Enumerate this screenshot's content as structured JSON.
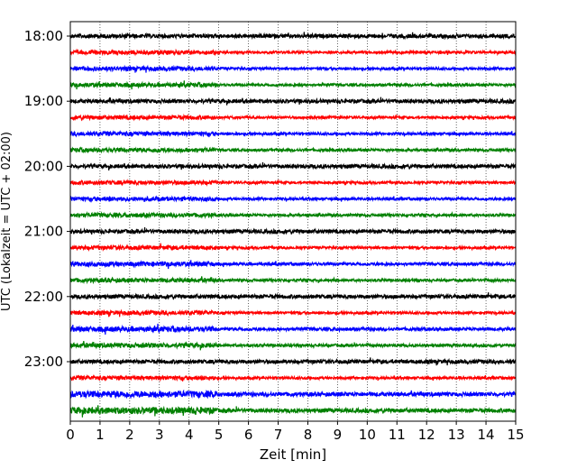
{
  "chart_data": {
    "type": "line",
    "xlabel": "Zeit  [min]",
    "ylabel": "UTC (Lokalzeit = UTC + 02:00)",
    "xlim": [
      0,
      15
    ],
    "x_ticks": [
      0,
      1,
      2,
      3,
      4,
      5,
      6,
      7,
      8,
      9,
      10,
      11,
      12,
      13,
      14,
      15
    ],
    "y_ticks": [
      "18:00",
      "19:00",
      "20:00",
      "21:00",
      "22:00",
      "23:00"
    ],
    "grid": "vertical dotted",
    "colors": [
      "#000000",
      "#ff0000",
      "#0000ff",
      "#008000"
    ],
    "traces": [
      {
        "start": "18:00",
        "color": "#000000",
        "amplitude": 0.9
      },
      {
        "start": "18:15",
        "color": "#ff0000",
        "amplitude": 0.9
      },
      {
        "start": "18:30",
        "color": "#0000ff",
        "amplitude": 0.9
      },
      {
        "start": "18:45",
        "color": "#008000",
        "amplitude": 0.9
      },
      {
        "start": "19:00",
        "color": "#000000",
        "amplitude": 0.9
      },
      {
        "start": "19:15",
        "color": "#ff0000",
        "amplitude": 0.9
      },
      {
        "start": "19:30",
        "color": "#0000ff",
        "amplitude": 0.9
      },
      {
        "start": "19:45",
        "color": "#008000",
        "amplitude": 0.9
      },
      {
        "start": "20:00",
        "color": "#000000",
        "amplitude": 0.9
      },
      {
        "start": "20:15",
        "color": "#ff0000",
        "amplitude": 0.9
      },
      {
        "start": "20:30",
        "color": "#0000ff",
        "amplitude": 0.9
      },
      {
        "start": "20:45",
        "color": "#008000",
        "amplitude": 0.9
      },
      {
        "start": "21:00",
        "color": "#000000",
        "amplitude": 0.9
      },
      {
        "start": "21:15",
        "color": "#ff0000",
        "amplitude": 0.9
      },
      {
        "start": "21:30",
        "color": "#0000ff",
        "amplitude": 1.0
      },
      {
        "start": "21:45",
        "color": "#008000",
        "amplitude": 0.9
      },
      {
        "start": "22:00",
        "color": "#000000",
        "amplitude": 0.9
      },
      {
        "start": "22:15",
        "color": "#ff0000",
        "amplitude": 0.9
      },
      {
        "start": "22:30",
        "color": "#0000ff",
        "amplitude": 1.1
      },
      {
        "start": "22:45",
        "color": "#008000",
        "amplitude": 1.0
      },
      {
        "start": "23:00",
        "color": "#000000",
        "amplitude": 0.9
      },
      {
        "start": "23:15",
        "color": "#ff0000",
        "amplitude": 0.9
      },
      {
        "start": "23:30",
        "color": "#0000ff",
        "amplitude": 1.4
      },
      {
        "start": "23:45",
        "color": "#008000",
        "amplitude": 1.4
      }
    ]
  }
}
